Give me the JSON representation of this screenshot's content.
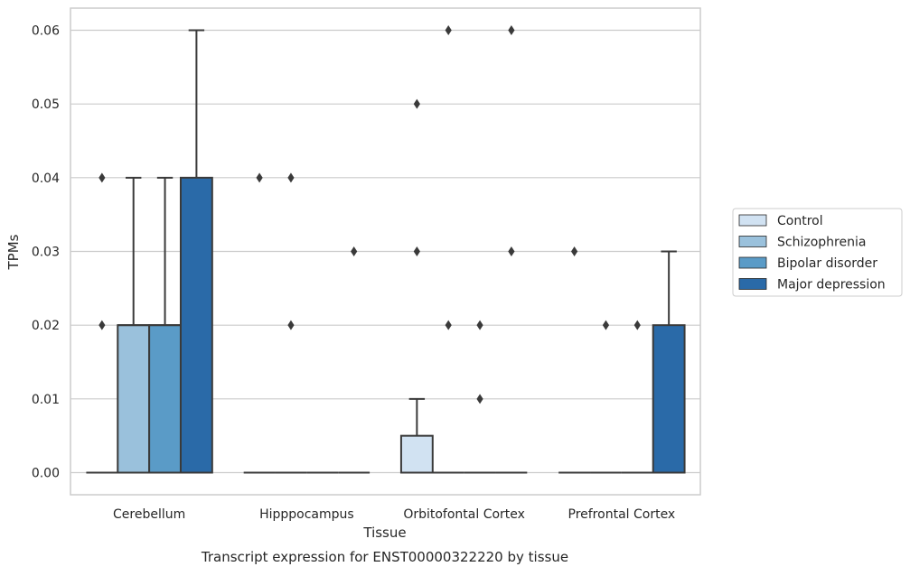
{
  "chart_data": {
    "type": "box",
    "title": "",
    "caption": "Transcript expression for ENST00000322220 by tissue",
    "xlabel": "Tissue",
    "ylabel": "TPMs",
    "ylim": [
      -0.003,
      0.063
    ],
    "yticks": [
      0.0,
      0.01,
      0.02,
      0.03,
      0.04,
      0.05,
      0.06
    ],
    "ytick_labels": [
      "0.00",
      "0.01",
      "0.02",
      "0.03",
      "0.04",
      "0.05",
      "0.06"
    ],
    "grid": "horizontal",
    "legend_position": "right",
    "categories": [
      "Cerebellum",
      "Hipppocampus",
      "Orbitofontal Cortex",
      "Prefrontal Cortex"
    ],
    "series": [
      {
        "name": "Control",
        "color": "#d1e2f2",
        "boxes": [
          {
            "q1": 0,
            "median": 0,
            "q3": 0,
            "whisker_low": 0,
            "whisker_high": 0,
            "outliers": [
              0.02,
              0.04
            ]
          },
          {
            "q1": 0,
            "median": 0,
            "q3": 0,
            "whisker_low": 0,
            "whisker_high": 0,
            "outliers": [
              0.04
            ]
          },
          {
            "q1": 0,
            "median": 0,
            "q3": 0.005,
            "whisker_low": 0,
            "whisker_high": 0.01,
            "outliers": [
              0.03,
              0.05
            ]
          },
          {
            "q1": 0,
            "median": 0,
            "q3": 0,
            "whisker_low": 0,
            "whisker_high": 0,
            "outliers": [
              0.03
            ]
          }
        ]
      },
      {
        "name": "Schizophrenia",
        "color": "#9ac1dc",
        "boxes": [
          {
            "q1": 0,
            "median": 0.02,
            "q3": 0.02,
            "whisker_low": 0,
            "whisker_high": 0.04,
            "outliers": []
          },
          {
            "q1": 0,
            "median": 0,
            "q3": 0,
            "whisker_low": 0,
            "whisker_high": 0,
            "outliers": [
              0.02,
              0.04
            ]
          },
          {
            "q1": 0,
            "median": 0,
            "q3": 0,
            "whisker_low": 0,
            "whisker_high": 0,
            "outliers": [
              0.02,
              0.06
            ]
          },
          {
            "q1": 0,
            "median": 0,
            "q3": 0,
            "whisker_low": 0,
            "whisker_high": 0,
            "outliers": [
              0.02
            ]
          }
        ]
      },
      {
        "name": "Bipolar disorder",
        "color": "#5a9bc7",
        "boxes": [
          {
            "q1": 0,
            "median": 0.02,
            "q3": 0.02,
            "whisker_low": 0,
            "whisker_high": 0.04,
            "outliers": []
          },
          {
            "q1": 0,
            "median": 0,
            "q3": 0,
            "whisker_low": 0,
            "whisker_high": 0,
            "outliers": []
          },
          {
            "q1": 0,
            "median": 0,
            "q3": 0,
            "whisker_low": 0,
            "whisker_high": 0,
            "outliers": [
              0.01,
              0.02
            ]
          },
          {
            "q1": 0,
            "median": 0,
            "q3": 0,
            "whisker_low": 0,
            "whisker_high": 0,
            "outliers": [
              0.02
            ]
          }
        ]
      },
      {
        "name": "Major depression",
        "color": "#2a6aa8",
        "boxes": [
          {
            "q1": 0,
            "median": 0,
            "q3": 0.04,
            "whisker_low": 0,
            "whisker_high": 0.06,
            "outliers": []
          },
          {
            "q1": 0,
            "median": 0,
            "q3": 0,
            "whisker_low": 0,
            "whisker_high": 0,
            "outliers": [
              0.03
            ]
          },
          {
            "q1": 0,
            "median": 0,
            "q3": 0,
            "whisker_low": 0,
            "whisker_high": 0,
            "outliers": [
              0.03,
              0.06
            ]
          },
          {
            "q1": 0,
            "median": 0,
            "q3": 0.02,
            "whisker_low": 0,
            "whisker_high": 0.03,
            "outliers": []
          }
        ]
      }
    ],
    "colors": {
      "grid": "#cccccc",
      "frame": "#cccccc",
      "box_edge": "#3a3a3a",
      "outlier": "#3a3a3a",
      "text": "#262626"
    }
  }
}
